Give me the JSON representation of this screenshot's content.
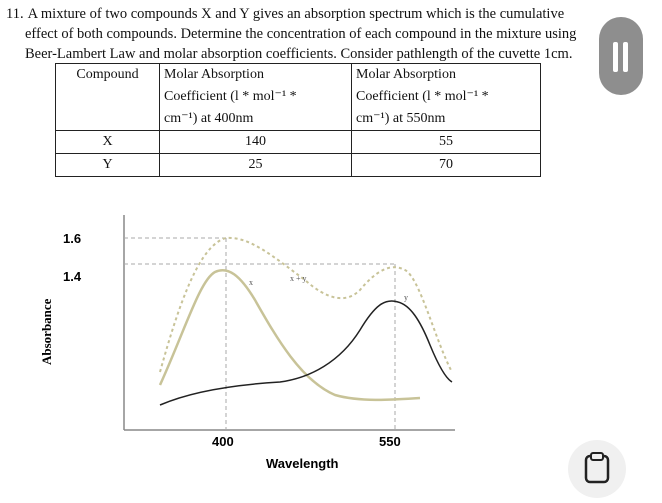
{
  "question": {
    "number": "11.",
    "line1": "A mixture of two compounds X and Y gives an absorption spectrum which is the cumulative",
    "line2": "effect of both compounds. Determine the concentration of each compound in the mixture using",
    "line3": "Beer-Lambert Law and molar absorption coefficients. Consider pathlength of the cuvette 1cm."
  },
  "table": {
    "col1_header": "Compound",
    "col2_header_l1": "Molar Absorption",
    "col2_header_l2": "Coefficient (l * mol⁻¹ *",
    "col2_header_l3": "cm⁻¹) at 400nm",
    "col3_header_l1": "Molar Absorption",
    "col3_header_l2": "Coefficient (l * mol⁻¹ *",
    "col3_header_l3": "cm⁻¹) at 550nm",
    "rows": [
      {
        "compound": "X",
        "at400": "140",
        "at550": "55"
      },
      {
        "compound": "Y",
        "at400": "25",
        "at550": "70"
      }
    ]
  },
  "chart_data": {
    "type": "line",
    "xlabel": "Wavelength",
    "ylabel": "Absorbance",
    "x_ticks": [
      "400",
      "550"
    ],
    "y_ticks": [
      "1.6",
      "1.4"
    ],
    "series_labels": [
      "x",
      "x + y",
      "y"
    ],
    "annotations": {
      "peak_x_plus_y_400": 1.6,
      "peak_x_plus_y_550": 1.4
    }
  },
  "icons": {
    "side_button": "pause-icon",
    "bottom_button": "clipboard-icon"
  }
}
